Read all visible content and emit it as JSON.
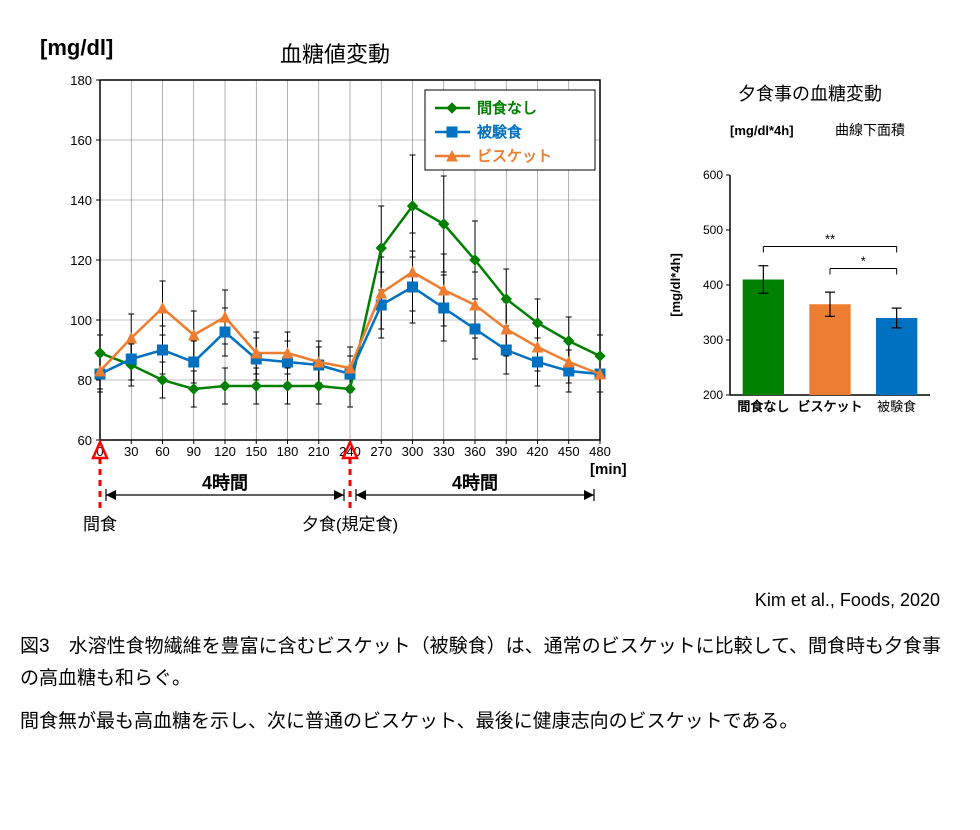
{
  "main": {
    "type": "line",
    "title": "血糖値変動",
    "title_fontsize": 22,
    "yaxis_label": "[mg/dl]",
    "yaxis_label_fontsize": 22,
    "xaxis_label": "[min]",
    "xaxis_label_fontsize": 15,
    "xlim": [
      0,
      480
    ],
    "ylim": [
      60,
      180
    ],
    "xtick_step": 30,
    "ytick_step": 20,
    "x_ticks": [
      0,
      30,
      60,
      90,
      120,
      150,
      180,
      210,
      240,
      270,
      300,
      330,
      360,
      390,
      420,
      450,
      480
    ],
    "y_ticks": [
      60,
      80,
      100,
      120,
      140,
      160,
      180
    ],
    "axis_tick_fontsize": 13,
    "background": "#ffffff",
    "grid_color": "#808080",
    "axis_color": "#000000",
    "marker_size": 5,
    "line_width": 2.5,
    "error_bar_color": "#000000",
    "series": [
      {
        "name": "間食なし",
        "color": "#008000",
        "marker": "diamond",
        "x": [
          0,
          30,
          60,
          90,
          120,
          150,
          180,
          210,
          240,
          270,
          300,
          330,
          360,
          390,
          420,
          450,
          480
        ],
        "y": [
          89,
          85,
          80,
          77,
          78,
          78,
          78,
          78,
          77,
          124,
          138,
          132,
          120,
          107,
          99,
          93,
          88
        ],
        "err": [
          6,
          7,
          6,
          6,
          6,
          6,
          6,
          6,
          6,
          14,
          17,
          16,
          13,
          10,
          8,
          8,
          7
        ]
      },
      {
        "name": "被験食",
        "color": "#0070c0",
        "marker": "square",
        "x": [
          0,
          30,
          60,
          90,
          120,
          150,
          180,
          210,
          240,
          270,
          300,
          330,
          360,
          390,
          420,
          450,
          480
        ],
        "y": [
          82,
          87,
          90,
          86,
          96,
          87,
          86,
          85,
          82,
          105,
          111,
          104,
          97,
          90,
          86,
          83,
          82
        ],
        "err": [
          6,
          7,
          8,
          7,
          8,
          7,
          7,
          6,
          6,
          11,
          12,
          11,
          10,
          8,
          8,
          7,
          6
        ]
      },
      {
        "name": "ビスケット",
        "color": "#ed7d31",
        "marker": "triangle",
        "x": [
          0,
          30,
          60,
          90,
          120,
          150,
          180,
          210,
          240,
          270,
          300,
          330,
          360,
          390,
          420,
          450,
          480
        ],
        "y": [
          83,
          94,
          104,
          95,
          101,
          89,
          89,
          86,
          84,
          109,
          116,
          110,
          105,
          97,
          91,
          86,
          82
        ],
        "err": [
          6,
          8,
          9,
          8,
          9,
          7,
          7,
          7,
          7,
          12,
          13,
          12,
          11,
          9,
          8,
          7,
          6
        ]
      }
    ],
    "annotations": {
      "snack_label": "間食",
      "dinner_label": "夕食(規定食)",
      "interval_label": "4時間",
      "arrow_color": "#ff0000"
    }
  },
  "side": {
    "type": "bar",
    "title": "夕食事の血糖変動",
    "title_fontsize": 18,
    "subtitle": "曲線下面積",
    "subtitle_fontsize": 14,
    "yaxis_unit": "[mg/dl*4h]",
    "yaxis_label": "[mg/dl*4h]",
    "ylim": [
      200,
      600
    ],
    "ytick_step": 100,
    "y_ticks": [
      200,
      300,
      400,
      500,
      600
    ],
    "categories": [
      "間食なし",
      "ビスケット",
      "被験食"
    ],
    "values": [
      410,
      365,
      340
    ],
    "errors": [
      25,
      22,
      18
    ],
    "colors": [
      "#008000",
      "#ed7d31",
      "#0070c0"
    ],
    "bar_width": 0.62,
    "background": "#ffffff",
    "axis_color": "#000000",
    "sig_marks": [
      {
        "from": 0,
        "to": 2,
        "label": "**",
        "y": 470
      },
      {
        "from": 1,
        "to": 2,
        "label": "*",
        "y": 430
      }
    ],
    "label_fontsize": 13
  },
  "citation": "Kim et al., Foods, 2020",
  "caption1": "図3　水溶性食物繊維を豊富に含むビスケット（被験食）は、通常のビスケットに比較して、間食時も夕食事の高血糖も和らぐ。",
  "caption2": "間食無が最も高血糖を示し、次に普通のビスケット、最後に健康志向のビスケットである。"
}
